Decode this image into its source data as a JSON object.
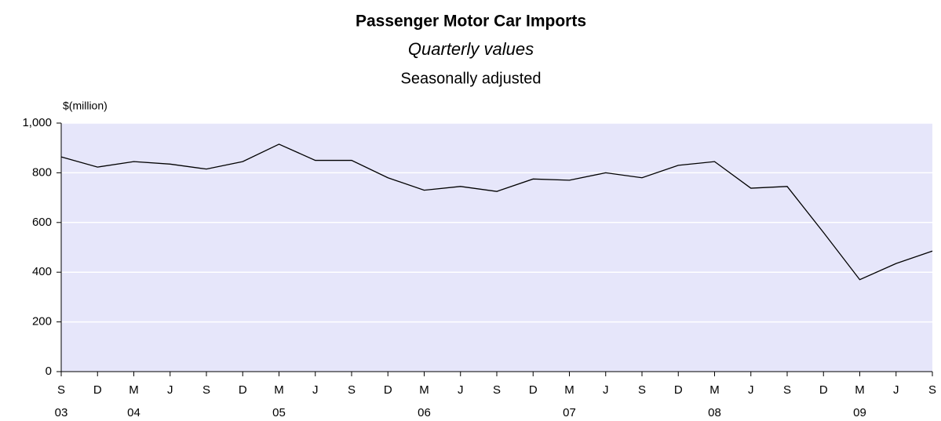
{
  "chart_data": {
    "type": "line",
    "title": "Passenger Motor Car Imports",
    "subtitle": "Quarterly values",
    "note": "Seasonally adjusted",
    "y_axis_label": "$(million)",
    "categories": [
      "S",
      "D",
      "M",
      "J",
      "S",
      "D",
      "M",
      "J",
      "S",
      "D",
      "M",
      "J",
      "S",
      "D",
      "M",
      "J",
      "S",
      "D",
      "M",
      "J",
      "S",
      "D",
      "M",
      "J",
      "S"
    ],
    "category_years": [
      "03",
      null,
      "04",
      null,
      null,
      null,
      "05",
      null,
      null,
      null,
      "06",
      null,
      null,
      null,
      "07",
      null,
      null,
      null,
      "08",
      null,
      null,
      null,
      "09",
      null,
      null
    ],
    "series": [
      {
        "name": "Passenger Motor Car Imports",
        "color": "#000000",
        "values": [
          864,
          823,
          845,
          835,
          815,
          845,
          915,
          850,
          850,
          780,
          730,
          745,
          725,
          775,
          770,
          800,
          780,
          830,
          845,
          738,
          745,
          560,
          370,
          435,
          485
        ]
      }
    ],
    "ylim": [
      0,
      1000
    ],
    "yticks": [
      0,
      200,
      400,
      600,
      800,
      {
        "value": 1000,
        "label": "1,000"
      }
    ],
    "grid": true,
    "plot_background": "#e6e6fa",
    "grid_color": "#ffffff"
  }
}
